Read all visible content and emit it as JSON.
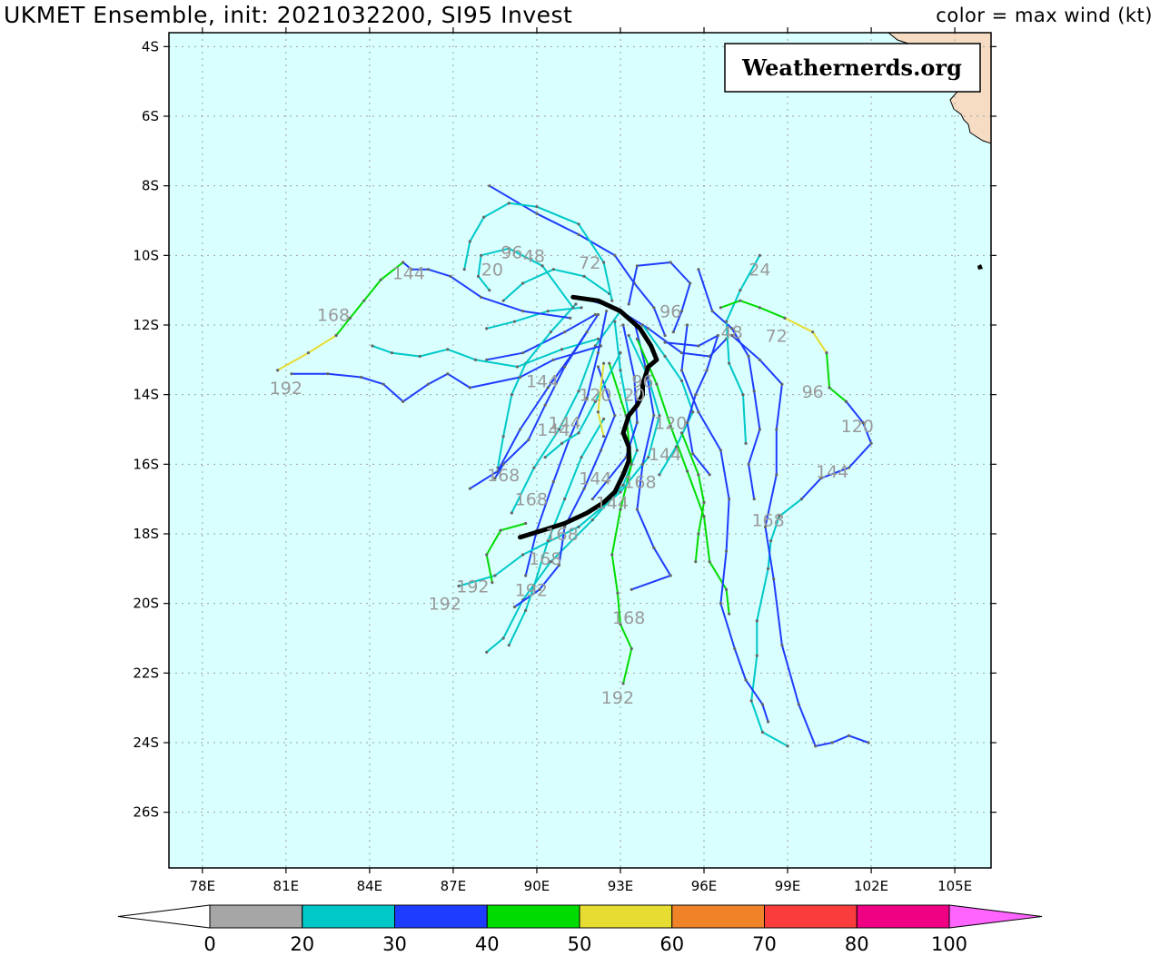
{
  "header": {
    "title": "UKMET Ensemble, init: 2021032200, SI95 Invest",
    "subtitle": "color = max wind (kt)"
  },
  "watermark": "Weathernerds.org",
  "map": {
    "lon_range": [
      76.8,
      106.3
    ],
    "lat_range": [
      -27.6,
      -3.6
    ],
    "ocean_color": "#d9ffff",
    "land_color": "#f5dcc3",
    "grid_color": "#a0a0a0",
    "lat_ticks": [
      -4,
      -6,
      -8,
      -10,
      -12,
      -14,
      -16,
      -18,
      -20,
      -22,
      -24,
      -26
    ],
    "lat_labels": [
      "4S",
      "6S",
      "8S",
      "10S",
      "12S",
      "14S",
      "16S",
      "18S",
      "20S",
      "22S",
      "24S",
      "26S"
    ],
    "lon_ticks": [
      78,
      81,
      84,
      87,
      90,
      93,
      96,
      99,
      102,
      105
    ],
    "lon_labels": [
      "78E",
      "81E",
      "84E",
      "87E",
      "90E",
      "93E",
      "96E",
      "99E",
      "102E",
      "105E"
    ]
  },
  "colorbar": {
    "labels": [
      "0",
      "20",
      "30",
      "40",
      "50",
      "60",
      "70",
      "80",
      "100"
    ],
    "colors": [
      "#a6a6a6",
      "#00c8c8",
      "#1e3cff",
      "#00dc00",
      "#e6dc32",
      "#f08228",
      "#fa3c3c",
      "#f00082",
      "#ff64ff"
    ],
    "under_color": "#ffffff"
  },
  "hour_labels": [
    {
      "text": "144",
      "lon": 85.4,
      "lat": -10.5
    },
    {
      "text": "168",
      "lon": 82.7,
      "lat": -11.7
    },
    {
      "text": "192",
      "lon": 81.0,
      "lat": -13.8
    },
    {
      "text": "20",
      "lon": 88.4,
      "lat": -10.4
    },
    {
      "text": "96",
      "lon": 89.1,
      "lat": -9.9
    },
    {
      "text": "48",
      "lon": 89.9,
      "lat": -10.0
    },
    {
      "text": "72",
      "lon": 91.9,
      "lat": -10.2
    },
    {
      "text": "96",
      "lon": 94.8,
      "lat": -11.6
    },
    {
      "text": "24",
      "lon": 98.0,
      "lat": -10.4
    },
    {
      "text": "48",
      "lon": 97.0,
      "lat": -12.2
    },
    {
      "text": "72",
      "lon": 98.6,
      "lat": -12.3
    },
    {
      "text": "96",
      "lon": 99.9,
      "lat": -13.9
    },
    {
      "text": "120",
      "lon": 101.5,
      "lat": -14.9
    },
    {
      "text": "144",
      "lon": 100.6,
      "lat": -16.2
    },
    {
      "text": "168",
      "lon": 98.3,
      "lat": -17.6
    },
    {
      "text": "144",
      "lon": 90.2,
      "lat": -13.6
    },
    {
      "text": "144",
      "lon": 91.0,
      "lat": -14.8
    },
    {
      "text": "144",
      "lon": 90.6,
      "lat": -15.0
    },
    {
      "text": "120",
      "lon": 92.1,
      "lat": -14.0
    },
    {
      "text": "20",
      "lon": 93.5,
      "lat": -14.0
    },
    {
      "text": "96",
      "lon": 93.8,
      "lat": -13.6
    },
    {
      "text": "120",
      "lon": 94.8,
      "lat": -14.8
    },
    {
      "text": "144",
      "lon": 94.6,
      "lat": -15.7
    },
    {
      "text": "144",
      "lon": 92.1,
      "lat": -16.4
    },
    {
      "text": "168",
      "lon": 93.7,
      "lat": -16.5
    },
    {
      "text": "144",
      "lon": 92.7,
      "lat": -17.1
    },
    {
      "text": "168",
      "lon": 88.8,
      "lat": -16.3
    },
    {
      "text": "168",
      "lon": 89.8,
      "lat": -17.0
    },
    {
      "text": "168",
      "lon": 90.9,
      "lat": -18.0
    },
    {
      "text": "168",
      "lon": 90.3,
      "lat": -18.7
    },
    {
      "text": "192",
      "lon": 87.7,
      "lat": -19.5
    },
    {
      "text": "192",
      "lon": 89.8,
      "lat": -19.6
    },
    {
      "text": "192",
      "lon": 86.7,
      "lat": -20.0
    },
    {
      "text": "168",
      "lon": 93.3,
      "lat": -20.4
    },
    {
      "text": "192",
      "lon": 92.9,
      "lat": -22.7
    }
  ]
}
